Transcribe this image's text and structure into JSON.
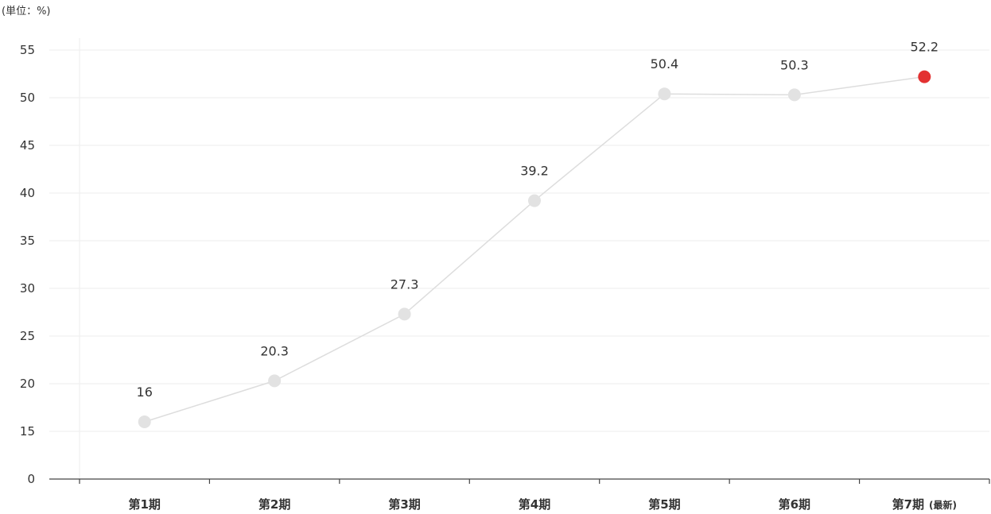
{
  "unit_label": "(単位：%)",
  "colors": {
    "line": "#dddddd",
    "point_default": "#e2e2e2",
    "point_latest": "#e33131",
    "grid": "#eeeeee",
    "axis": "#444444",
    "text": "#333333",
    "value_label": "#333333"
  },
  "chart_data": {
    "type": "line",
    "title": "",
    "xlabel": "",
    "ylabel": "",
    "categories": [
      "第1期",
      "第2期",
      "第3期",
      "第4期",
      "第5期",
      "第6期",
      "第7期"
    ],
    "category_notes": [
      "",
      "",
      "",
      "",
      "",
      "",
      "(最新)"
    ],
    "series": [
      {
        "values": [
          16,
          20.3,
          27.3,
          39.2,
          50.4,
          50.3,
          52.2
        ],
        "value_labels": [
          "16",
          "20.3",
          "27.3",
          "39.2",
          "50.4",
          "50.3",
          "52.2"
        ],
        "highlight_index": 6
      }
    ],
    "y_ticks": [
      0,
      15,
      20,
      25,
      30,
      35,
      40,
      45,
      50,
      55
    ],
    "y_tick_labels": [
      "0",
      "15",
      "20",
      "25",
      "30",
      "35",
      "40",
      "45",
      "50",
      "55"
    ],
    "ylim": [
      10,
      55
    ],
    "y_axis_break": true,
    "grid": true,
    "legend": "none"
  }
}
